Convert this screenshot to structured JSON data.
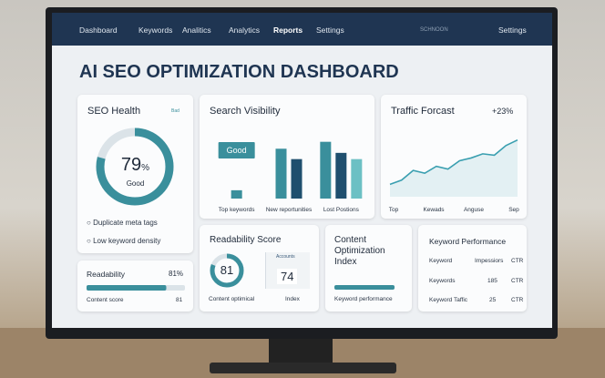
{
  "nav": {
    "items": [
      "Dashboard",
      "Keywords",
      "Analitics",
      "Analytics",
      "Reports",
      "Settings"
    ],
    "user": "SCHNOON",
    "right": "Settings"
  },
  "title": "AI SEO OPTIMIZATION DASHBOARD",
  "seo_health": {
    "title": "SEO Health",
    "badge": "Bad",
    "score": 79,
    "unit": "%",
    "range": [
      0,
      100
    ],
    "status": "Good",
    "checks": [
      "Duplicate meta tags",
      "Low keyword density"
    ]
  },
  "search_visibility": {
    "type": "bar",
    "title": "Search Visibility",
    "categories": [
      "Top keywords",
      "New reportunities",
      "Lost Postions"
    ],
    "ylim": [
      0,
      100
    ],
    "annotation": "Good",
    "series": [
      {
        "color": "#3a8f9c",
        "values": [
          12,
          72,
          82
        ]
      },
      {
        "color": "#1f4f6e",
        "values": [
          null,
          57,
          66
        ]
      },
      {
        "color": "#6cc0c4",
        "values": [
          null,
          null,
          57
        ]
      }
    ]
  },
  "traffic": {
    "type": "line",
    "title": "Traffic Forcast",
    "change": "+23%",
    "x_labels": [
      "Top",
      "Kewads",
      "Anguse",
      "Sep"
    ],
    "ylim": [
      0,
      100
    ],
    "color": "#3a9fb0",
    "values": [
      18,
      24,
      38,
      34,
      44,
      40,
      52,
      56,
      62,
      60,
      74,
      82
    ]
  },
  "readability": {
    "title": "Readability",
    "score_label": "81%",
    "score": 81,
    "range": [
      0,
      100
    ],
    "caption": "Content score",
    "caption_value": "81"
  },
  "readability_score": {
    "title": "Readability Score",
    "score": 81,
    "range": [
      0,
      100
    ],
    "caption": "Content optimical",
    "box_label": "Accounts",
    "box_value": "74",
    "box_caption": "Index"
  },
  "content_optimization": {
    "title": "Content Optimization Index",
    "caption": "Keyword performance"
  },
  "keyword_performance": {
    "title": "Keyword Performance",
    "header": [
      "Keyword",
      "Impessiors",
      "CTR"
    ],
    "rows": [
      [
        "Keywords",
        "185",
        "CTR"
      ],
      [
        "Keyword Taffic",
        "25",
        "CTR"
      ]
    ]
  }
}
